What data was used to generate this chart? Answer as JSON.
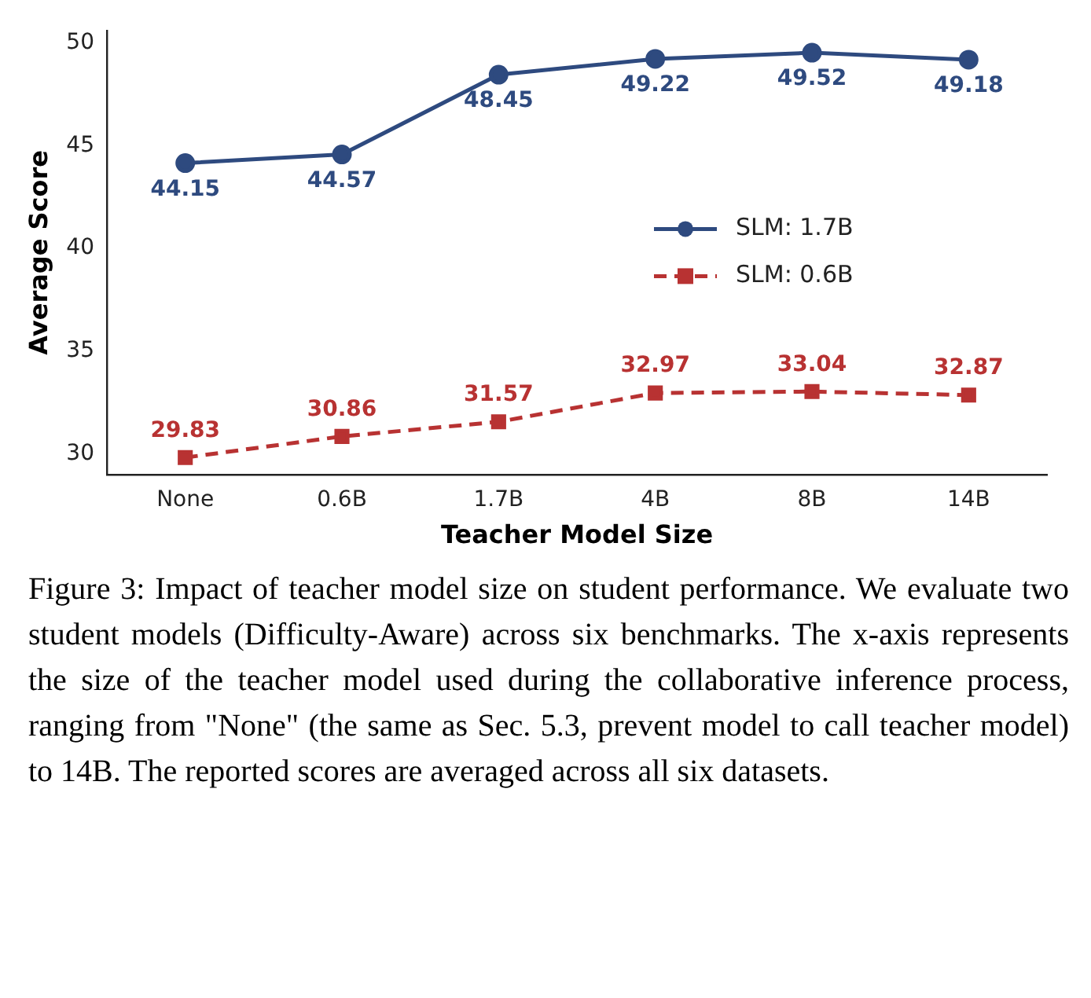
{
  "chart_data": {
    "type": "line",
    "xlabel": "Teacher Model Size",
    "ylabel": "Average Score",
    "categories": [
      "None",
      "0.6B",
      "1.7B",
      "4B",
      "8B",
      "14B"
    ],
    "series": [
      {
        "name": "SLM: 1.7B",
        "color": "#2e4a7f",
        "marker": "circle",
        "line_style": "solid",
        "values": [
          44.15,
          44.57,
          48.45,
          49.22,
          49.52,
          49.18
        ]
      },
      {
        "name": "SLM: 0.6B",
        "color": "#b83232",
        "marker": "square",
        "line_style": "dashed",
        "values": [
          29.83,
          30.86,
          31.57,
          32.97,
          33.04,
          32.87
        ]
      }
    ],
    "ylim": [
      29,
      50.6
    ],
    "yticks": [
      30,
      35,
      40,
      45,
      50
    ],
    "grid": false,
    "legend": "center right",
    "data_labels": true,
    "annotations": [
      "Figure 3: Impact of teacher model size on student performance. We evaluate two student models (Difficulty-Aware) across six benchmarks. The x-axis represents the size of the teacher model used during the collaborative inference process, ranging from \"None\" (the same as Sec. 5.3, prevent model to call teacher model) to 14B. The reported scores are averaged across all six datasets."
    ]
  }
}
